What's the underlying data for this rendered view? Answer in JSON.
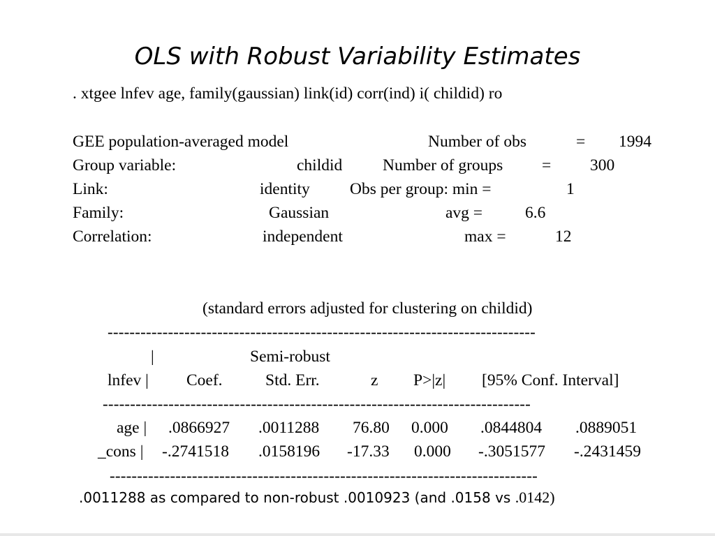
{
  "title": "OLS with Robust Variability Estimates",
  "command": ". xtgee  lnfev age, family(gaussian) link(id) corr(ind) i( childid) ro",
  "model": {
    "left_labels": [
      "GEE population-averaged model",
      "Group variable:",
      "Link:",
      "Family:",
      "Correlation:"
    ],
    "left_values": [
      "childid",
      "identity",
      "Gaussian",
      "independent"
    ],
    "right_labels": [
      "Number of obs",
      "Number of groups",
      "Obs per group: min =",
      "avg =",
      "max ="
    ],
    "equals": [
      "=",
      "="
    ],
    "right_values": [
      "1994",
      "300",
      "1",
      "6.6",
      "12"
    ]
  },
  "se_note": "(standard errors adjusted for clustering on childid)",
  "dashes": "------------------------------------------------------------------------------",
  "table": {
    "header1_bar": "|",
    "header1_semi": "Semi-robust",
    "headers": [
      "lnfev |",
      "Coef.",
      "Std. Err.",
      "z",
      "P>|z|",
      "[95% Conf. Interval]"
    ],
    "rows": [
      [
        "age |",
        ".0866927",
        ".0011288",
        "76.80",
        "0.000",
        ".0844804",
        ".0889051"
      ],
      [
        "_cons |",
        "-.2741518",
        ".0158196",
        "-17.33",
        "0.000",
        "-.3051577",
        "-.2431459"
      ]
    ]
  },
  "comparison_note": ".0011288 as compared to non-robust .0010923 (and .0158 vs",
  "comparison_note_tail": ".0142)"
}
